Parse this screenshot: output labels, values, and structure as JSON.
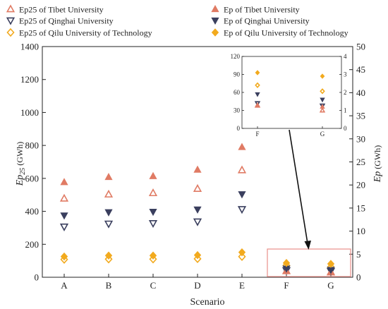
{
  "chart_data": {
    "type": "scatter",
    "categories": [
      "A",
      "B",
      "C",
      "D",
      "E",
      "F",
      "G"
    ],
    "xlabel": "Scenario",
    "ylabel_left": {
      "main": "Ep",
      "sub": "25",
      "unit": "(GWh)"
    },
    "ylabel_right": {
      "main": "Ep",
      "unit": "(GWh)"
    },
    "ylim_left": [
      0,
      1400
    ],
    "ylim_right": [
      0,
      50
    ],
    "yticks_left": [
      0,
      200,
      400,
      600,
      800,
      1000,
      1200,
      1400
    ],
    "yticks_right": [
      0,
      5,
      10,
      15,
      20,
      25,
      30,
      35,
      40,
      45,
      50
    ],
    "legend_placement": "top, two columns",
    "series": [
      {
        "name": "Ep25 of Tibet University",
        "axis": "left",
        "marker": "triangle-up",
        "fill": "open",
        "color": "#E07B64",
        "values": [
          478,
          503,
          511,
          537,
          650,
          38,
          30
        ]
      },
      {
        "name": "Ep of Tibet University",
        "axis": "right",
        "marker": "triangle-up",
        "fill": "solid",
        "color": "#E07B64",
        "values": [
          20.6,
          21.7,
          21.9,
          23.3,
          28.2,
          1.3,
          1.2
        ]
      },
      {
        "name": "Ep25 of Qinghai University",
        "axis": "left",
        "marker": "triangle-down",
        "fill": "open",
        "color": "#3A3F5E",
        "values": [
          307,
          325,
          328,
          338,
          413,
          42,
          38
        ]
      },
      {
        "name": "Ep of Qinghai University",
        "axis": "right",
        "marker": "triangle-down",
        "fill": "solid",
        "color": "#3A3F5E",
        "values": [
          13.4,
          14.1,
          14.2,
          14.7,
          18.0,
          1.9,
          1.6
        ]
      },
      {
        "name": "Ep25 of Qilu University of Technology",
        "axis": "left",
        "marker": "diamond",
        "fill": "open",
        "color": "#F2AA1E",
        "values": [
          108,
          110,
          110,
          112,
          125,
          72,
          62
        ]
      },
      {
        "name": "Ep of Qilu University of Technology",
        "axis": "right",
        "marker": "diamond",
        "fill": "solid",
        "color": "#F2AA1E",
        "values": [
          4.5,
          4.7,
          4.7,
          4.8,
          5.4,
          3.1,
          2.9
        ]
      }
    ],
    "inset": {
      "categories": [
        "F",
        "G"
      ],
      "ylim_left": [
        0,
        120
      ],
      "ylim_right": [
        0,
        4
      ],
      "yticks_left": [
        0,
        30,
        60,
        90,
        120
      ],
      "yticks_right": [
        0,
        1,
        2,
        3,
        4
      ]
    }
  }
}
